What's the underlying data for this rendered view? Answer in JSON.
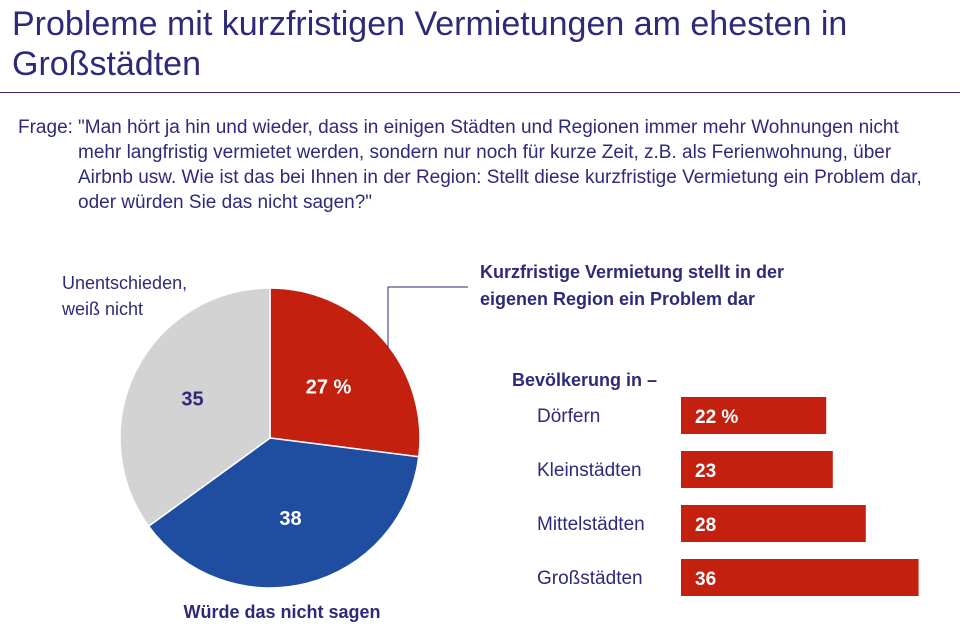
{
  "title": "Probleme mit kurzfristigen Vermietungen am ehesten in Großstädten",
  "question": {
    "label": "Frage:",
    "text": "\"Man hört ja hin und wieder, dass in einigen Städten und Regionen immer mehr Wohnungen nicht mehr langfristig vermietet werden, sondern nur noch für kurze Zeit, z.B. als Ferienwohnung, über Airbnb usw. Wie ist das bei Ihnen in der Region: Stellt diese kurzfristige Vermietung ein Problem dar, oder würden Sie das nicht sagen?\""
  },
  "colors": {
    "red": "#c4200f",
    "blue": "#1f4ea0",
    "gray": "#d3d3d3",
    "text": "#2e2a7a"
  },
  "chart_data": [
    {
      "type": "pie",
      "slices": [
        {
          "label_lines": [
            "Kurzfristige Vermietung stellt in der",
            "eigenen Region ein Problem dar"
          ],
          "value": 27,
          "display": "27 %",
          "color": "#c4200f"
        },
        {
          "label_lines": [
            "Würde das nicht sagen"
          ],
          "value": 38,
          "display": "38",
          "color": "#1f4ea0"
        },
        {
          "label_lines": [
            "Unentschieden,",
            "weiß nicht"
          ],
          "value": 35,
          "display": "35",
          "color": "#d3d3d3"
        }
      ]
    },
    {
      "type": "bar",
      "orientation": "horizontal",
      "title": "Bevölkerung in –",
      "categories": [
        "Dörfern",
        "Kleinstädten",
        "Mittelstädten",
        "Großstädten"
      ],
      "values": [
        22,
        23,
        28,
        36
      ],
      "value_labels": [
        "22 %",
        "23",
        "28",
        "36"
      ],
      "color": "#c4200f"
    }
  ]
}
